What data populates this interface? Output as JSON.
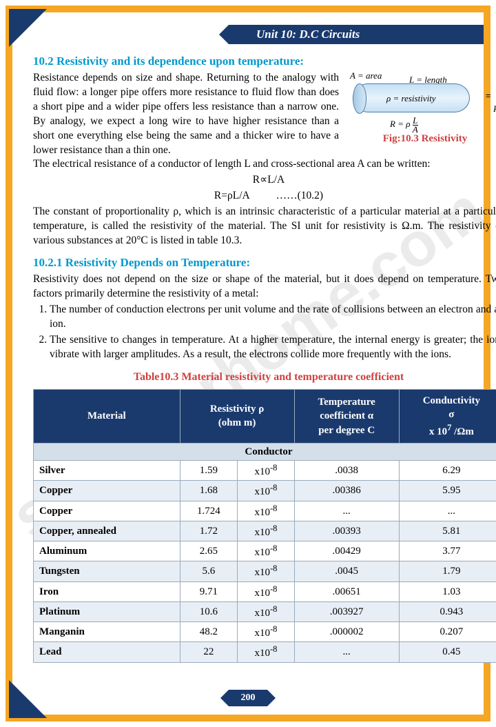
{
  "header": {
    "unit_label": "Unit  10: D.C Circuits"
  },
  "watermark": "studyforhome.com",
  "page_number": "200",
  "section1": {
    "heading": "10.2 Resistivity and its dependence upon temperature:",
    "para1": "Resistance depends on size and shape. Returning to the analogy with fluid flow: a longer pipe offers more resistance to fluid flow than does a short pipe and a wider pipe offers less resistance than a narrow one. By analogy, we expect a long wire to have higher resistance than a short one everything else being the same and a thicker wire to have a lower resistance than a thin one.",
    "para2": "The electrical resistance of a conductor of length L and cross-sectional area A can be written:",
    "eq1": "R∝L/A",
    "eq2": "R=ρL/A          ……(10.2)",
    "para3": "The constant of proportionality ρ, which is an intrinsic characteristic of a particular material at a particular temperature, is called the resistivity of the material. The SI unit for resistivity is Ω.m. The resistivity of various substances at 20°C is listed in table 10.3."
  },
  "figure": {
    "a_label": "A = area",
    "l_label": "L = length",
    "rho_label": "ρ = resistivity",
    "r_eq": "R = ρ  L / A",
    "r_sym": "R",
    "resistor": "= ⁓ᴡ⁓",
    "caption": "Fig:10.3 Resistivity"
  },
  "section2": {
    "heading": "10.2.1 Resistivity Depends on Temperature:",
    "intro": "Resistivity does not depend on the size or shape of the material, but it does depend on temperature. Two factors primarily determine the resistivity of a metal:",
    "li1": "The number of conduction electrons per unit volume and the rate of collisions between an electron and an ion.",
    "li2": "The sensitive to changes in temperature. At a higher temperature, the internal energy is greater; the ions vibrate with larger amplitudes. As a result, the electrons collide more frequently with the ions."
  },
  "table": {
    "title": "Table10.3 Material resistivity and temperature coefficient",
    "headers": {
      "c1": "Material",
      "c2": "Resistivity ρ\n(ohm m)",
      "c3": "Temperature coefficient α per degree C",
      "c4": "Conductivity σ\nx 10⁷ /Ωm"
    },
    "subheader": "Conductor",
    "exp": "x10⁻⁸",
    "rows": [
      {
        "m": "Silver",
        "r": "1.59",
        "a": ".0038",
        "c": "6.29"
      },
      {
        "m": "Copper",
        "r": "1.68",
        "a": ".00386",
        "c": "5.95"
      },
      {
        "m": "Copper",
        "r": "1.724",
        "a": "...",
        "c": "..."
      },
      {
        "m": "Copper, annealed",
        "r": "1.72",
        "a": ".00393",
        "c": "5.81"
      },
      {
        "m": "Aluminum",
        "r": "2.65",
        "a": ".00429",
        "c": "3.77"
      },
      {
        "m": "Tungsten",
        "r": "5.6",
        "a": ".0045",
        "c": "1.79"
      },
      {
        "m": "Iron",
        "r": "9.71",
        "a": ".00651",
        "c": "1.03"
      },
      {
        "m": "Platinum",
        "r": "10.6",
        "a": ".003927",
        "c": "0.943"
      },
      {
        "m": "Manganin",
        "r": "48.2",
        "a": ".000002",
        "c": "0.207"
      },
      {
        "m": "Lead",
        "r": "22",
        "a": "...",
        "c": "0.45"
      }
    ]
  }
}
